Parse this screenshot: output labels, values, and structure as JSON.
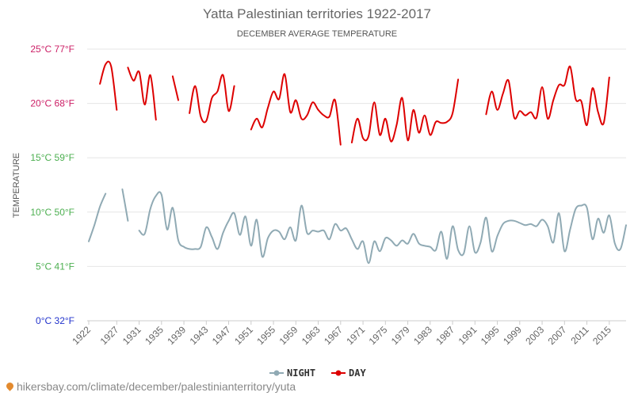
{
  "chart_data": {
    "type": "line",
    "title": "Yatta Palestinian territories 1922-2017",
    "subtitle": "DECEMBER AVERAGE TEMPERATURE",
    "ylabel": "TEMPERATURE",
    "ylim": [
      0,
      25
    ],
    "xlim": [
      1922,
      2018
    ],
    "yticks": [
      {
        "value": 25,
        "label": "25°C 77°F",
        "color": "#cc1f66"
      },
      {
        "value": 20,
        "label": "20°C 68°F",
        "color": "#cc1f66"
      },
      {
        "value": 15,
        "label": "15°C 59°F",
        "color": "#4caf50"
      },
      {
        "value": 10,
        "label": "10°C 50°F",
        "color": "#4caf50"
      },
      {
        "value": 5,
        "label": "5°C 41°F",
        "color": "#4caf50"
      },
      {
        "value": 0,
        "label": "0°C 32°F",
        "color": "#2233cc"
      }
    ],
    "xticks": [
      1922,
      1927,
      1931,
      1935,
      1939,
      1943,
      1947,
      1951,
      1955,
      1959,
      1963,
      1967,
      1971,
      1975,
      1979,
      1983,
      1987,
      1991,
      1995,
      1999,
      2003,
      2007,
      2011,
      2015
    ],
    "grid": true,
    "legend_position": "bottom",
    "series": [
      {
        "name": "NIGHT",
        "color": "#90aab4",
        "points": [
          [
            1922,
            7.3
          ],
          [
            1923,
            8.8
          ],
          [
            1924,
            10.5
          ],
          [
            1925,
            11.7
          ],
          [
            1928,
            12.1
          ],
          [
            1929,
            9.2
          ],
          [
            1931,
            8.3
          ],
          [
            1932,
            8
          ],
          [
            1933,
            10.3
          ],
          [
            1934,
            11.5
          ],
          [
            1935,
            11.6
          ],
          [
            1936,
            8.4
          ],
          [
            1937,
            10.4
          ],
          [
            1938,
            7.4
          ],
          [
            1939,
            6.8
          ],
          [
            1940,
            6.6
          ],
          [
            1941,
            6.6
          ],
          [
            1942,
            6.8
          ],
          [
            1943,
            8.6
          ],
          [
            1944,
            7.7
          ],
          [
            1945,
            6.6
          ],
          [
            1946,
            8.1
          ],
          [
            1947,
            9.2
          ],
          [
            1948,
            9.9
          ],
          [
            1949,
            7.9
          ],
          [
            1950,
            9.6
          ],
          [
            1951,
            6.9
          ],
          [
            1952,
            9.3
          ],
          [
            1953,
            5.9
          ],
          [
            1954,
            7.6
          ],
          [
            1955,
            8.3
          ],
          [
            1956,
            8.2
          ],
          [
            1957,
            7.5
          ],
          [
            1958,
            8.6
          ],
          [
            1959,
            7.4
          ],
          [
            1960,
            10.6
          ],
          [
            1961,
            8.1
          ],
          [
            1962,
            8.3
          ],
          [
            1963,
            8.2
          ],
          [
            1964,
            8.3
          ],
          [
            1965,
            7.5
          ],
          [
            1966,
            8.9
          ],
          [
            1967,
            8.3
          ],
          [
            1968,
            8.5
          ],
          [
            1969,
            7.5
          ],
          [
            1970,
            6.6
          ],
          [
            1971,
            7.3
          ],
          [
            1972,
            5.3
          ],
          [
            1973,
            7.3
          ],
          [
            1974,
            6.4
          ],
          [
            1975,
            7.6
          ],
          [
            1976,
            7.4
          ],
          [
            1977,
            6.9
          ],
          [
            1978,
            7.4
          ],
          [
            1979,
            7.1
          ],
          [
            1980,
            8
          ],
          [
            1981,
            7.1
          ],
          [
            1982,
            6.9
          ],
          [
            1983,
            6.8
          ],
          [
            1984,
            6.5
          ],
          [
            1985,
            8.2
          ],
          [
            1986,
            5.7
          ],
          [
            1987,
            8.7
          ],
          [
            1988,
            6.5
          ],
          [
            1989,
            6.2
          ],
          [
            1990,
            8.7
          ],
          [
            1991,
            6.3
          ],
          [
            1992,
            7.2
          ],
          [
            1993,
            9.5
          ],
          [
            1994,
            6.4
          ],
          [
            1995,
            7.8
          ],
          [
            1996,
            8.9
          ],
          [
            1997,
            9.2
          ],
          [
            1998,
            9.2
          ],
          [
            1999,
            9
          ],
          [
            2000,
            8.8
          ],
          [
            2001,
            8.9
          ],
          [
            2002,
            8.7
          ],
          [
            2003,
            9.3
          ],
          [
            2004,
            8.7
          ],
          [
            2005,
            7.2
          ],
          [
            2006,
            9.9
          ],
          [
            2007,
            6.4
          ],
          [
            2008,
            8.4
          ],
          [
            2009,
            10.3
          ],
          [
            2010,
            10.6
          ],
          [
            2011,
            10.4
          ],
          [
            2012,
            7.5
          ],
          [
            2013,
            9.4
          ],
          [
            2014,
            8.1
          ],
          [
            2015,
            9.7
          ],
          [
            2016,
            7.1
          ],
          [
            2017,
            6.6
          ],
          [
            2018,
            8.8
          ]
        ],
        "breaks": [
          1926,
          1930
        ]
      },
      {
        "name": "DAY",
        "color": "#dd0000",
        "points": [
          [
            1924,
            21.8
          ],
          [
            1925,
            23.6
          ],
          [
            1926,
            23.4
          ],
          [
            1927,
            19.4
          ],
          [
            1929,
            23.3
          ],
          [
            1930,
            22.1
          ],
          [
            1931,
            22.9
          ],
          [
            1932,
            19.9
          ],
          [
            1933,
            22.6
          ],
          [
            1934,
            18.5
          ],
          [
            1937,
            22.5
          ],
          [
            1938,
            20.3
          ],
          [
            1940,
            19.1
          ],
          [
            1941,
            21.6
          ],
          [
            1942,
            18.8
          ],
          [
            1943,
            18.4
          ],
          [
            1944,
            20.5
          ],
          [
            1945,
            21.1
          ],
          [
            1946,
            22.6
          ],
          [
            1947,
            19.3
          ],
          [
            1948,
            21.6
          ],
          [
            1951,
            17.6
          ],
          [
            1952,
            18.6
          ],
          [
            1953,
            17.8
          ],
          [
            1954,
            19.6
          ],
          [
            1955,
            21.1
          ],
          [
            1956,
            20.4
          ],
          [
            1957,
            22.7
          ],
          [
            1958,
            19.2
          ],
          [
            1959,
            20.3
          ],
          [
            1960,
            18.6
          ],
          [
            1961,
            18.9
          ],
          [
            1962,
            20.1
          ],
          [
            1963,
            19.4
          ],
          [
            1964,
            18.9
          ],
          [
            1965,
            18.8
          ],
          [
            1966,
            20.3
          ],
          [
            1967,
            16.2
          ],
          [
            1969,
            16.4
          ],
          [
            1970,
            18.6
          ],
          [
            1971,
            16.8
          ],
          [
            1972,
            17
          ],
          [
            1973,
            20.1
          ],
          [
            1974,
            17.1
          ],
          [
            1975,
            18.6
          ],
          [
            1976,
            16.5
          ],
          [
            1977,
            18
          ],
          [
            1978,
            20.5
          ],
          [
            1979,
            16.6
          ],
          [
            1980,
            19.4
          ],
          [
            1981,
            17.3
          ],
          [
            1982,
            18.9
          ],
          [
            1983,
            17.1
          ],
          [
            1984,
            18.3
          ],
          [
            1985,
            18.2
          ],
          [
            1986,
            18.3
          ],
          [
            1987,
            19.1
          ],
          [
            1988,
            22.2
          ],
          [
            1993,
            19
          ],
          [
            1994,
            21.1
          ],
          [
            1995,
            19.4
          ],
          [
            1996,
            20.9
          ],
          [
            1997,
            22.1
          ],
          [
            1998,
            18.7
          ],
          [
            1999,
            19.3
          ],
          [
            2000,
            18.9
          ],
          [
            2001,
            19.2
          ],
          [
            2002,
            18.7
          ],
          [
            2003,
            21.5
          ],
          [
            2004,
            18.6
          ],
          [
            2005,
            20.3
          ],
          [
            2006,
            21.7
          ],
          [
            2007,
            21.7
          ],
          [
            2008,
            23.4
          ],
          [
            2009,
            20.4
          ],
          [
            2010,
            20.2
          ],
          [
            2011,
            18
          ],
          [
            2012,
            21.4
          ],
          [
            2013,
            19.2
          ],
          [
            2014,
            18.2
          ],
          [
            2015,
            22.4
          ]
        ],
        "breaks": [
          1928,
          1936,
          1939,
          1950,
          1968,
          1990
        ]
      }
    ]
  },
  "footer": {
    "text": "hikersbay.com/climate/december/palestinianterritory/yuta"
  }
}
